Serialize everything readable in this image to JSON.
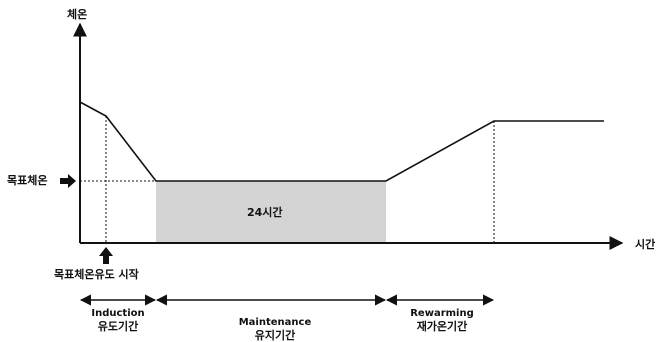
{
  "axes": {
    "y_label": "체온",
    "x_label": "시간"
  },
  "markers": {
    "target_temp": "목표체온",
    "induction_start": "목표체온유도 시작"
  },
  "plateau": {
    "duration": "24시간"
  },
  "phases": [
    {
      "en": "Induction",
      "ko": "유도기간"
    },
    {
      "en": "Maintenance",
      "ko": "유지기간"
    },
    {
      "en": "Rewarming",
      "ko": "재가온기간"
    }
  ],
  "colors": {
    "line": "#111111",
    "plateau_fill": "#d4d4d4"
  }
}
